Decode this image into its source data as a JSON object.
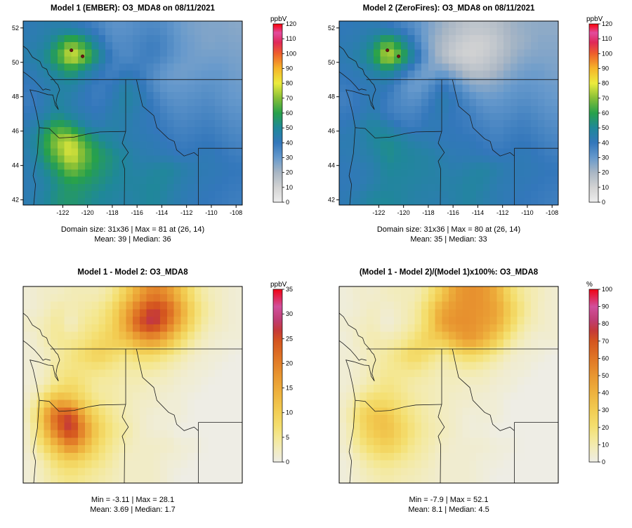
{
  "page": {
    "background": "#ffffff"
  },
  "axes": {
    "x_ticks": [
      -122,
      -120,
      -118,
      -116,
      -114,
      -112,
      -110,
      -108
    ],
    "y_ticks": [
      42,
      44,
      46,
      48,
      50,
      52
    ]
  },
  "colormaps": {
    "conc": [
      [
        0.0,
        "#ededed"
      ],
      [
        0.083,
        "#d3d3d3"
      ],
      [
        0.167,
        "#a9b6c4"
      ],
      [
        0.25,
        "#6699cc"
      ],
      [
        0.333,
        "#3377bb"
      ],
      [
        0.417,
        "#1f8899"
      ],
      [
        0.5,
        "#27a14b"
      ],
      [
        0.583,
        "#86bf36"
      ],
      [
        0.667,
        "#ecec3d"
      ],
      [
        0.75,
        "#f6b529"
      ],
      [
        0.833,
        "#ee5f2b"
      ],
      [
        0.896,
        "#e02858"
      ],
      [
        0.95,
        "#e24b9d"
      ],
      [
        1.0,
        "#fb0007"
      ]
    ],
    "diff": [
      [
        0.0,
        "#eeede5"
      ],
      [
        0.07,
        "#f2ecc0"
      ],
      [
        0.14,
        "#f4e896"
      ],
      [
        0.21,
        "#f4de6e"
      ],
      [
        0.3,
        "#f2cc52"
      ],
      [
        0.4,
        "#eeb23e"
      ],
      [
        0.5,
        "#e89630"
      ],
      [
        0.6,
        "#e07626"
      ],
      [
        0.7,
        "#d4551f"
      ],
      [
        0.76,
        "#c53a38"
      ],
      [
        0.82,
        "#bf3d72"
      ],
      [
        0.9,
        "#d1509c"
      ],
      [
        1.0,
        "#f00314"
      ]
    ]
  },
  "panels": [
    {
      "title": "Model 1 (EMBER): O3_MDA8 on 08/11/2021",
      "stats_line1": "Domain size: 31x36 | Max = 81 at (26, 14)",
      "stats_line2": "Mean: 39 |  Median: 36",
      "colorbar": {
        "label": "ppbV",
        "min": 0,
        "max": 120,
        "ticks": [
          0,
          10,
          20,
          30,
          40,
          50,
          60,
          70,
          80,
          90,
          100,
          110,
          120
        ],
        "palette": "conc"
      }
    },
    {
      "title": "Model 2 (ZeroFires): O3_MDA8 on 08/11/2021",
      "stats_line1": "Domain size: 31x36 | Max = 80 at (26, 14)",
      "stats_line2": "Mean: 35 |  Median: 33",
      "colorbar": {
        "label": "ppbV",
        "min": 0,
        "max": 120,
        "ticks": [
          0,
          10,
          20,
          30,
          40,
          50,
          60,
          70,
          80,
          90,
          100,
          110,
          120
        ],
        "palette": "conc"
      }
    },
    {
      "title": "Model 1 - Model 2: O3_MDA8",
      "stats_line1": "Min = -3.11 | Max = 28.1",
      "stats_line2": "Mean: 3.69 |  Median: 1.7",
      "colorbar": {
        "label": "ppbV",
        "min": 0,
        "max": 35,
        "ticks": [
          0,
          5,
          10,
          15,
          20,
          25,
          30,
          35
        ],
        "palette": "diff"
      }
    },
    {
      "title": "(Model 1 - Model 2)/(Model 1)x100%: O3_MDA8",
      "stats_line1": "Min = -7.9 | Max = 52.1",
      "stats_line2": "Mean: 8.1 |  Median: 4.5",
      "colorbar": {
        "label": "%",
        "min": 0,
        "max": 100,
        "ticks": [
          0,
          10,
          20,
          30,
          40,
          50,
          60,
          70,
          80,
          90,
          100
        ],
        "palette": "diff"
      }
    }
  ],
  "chart_data": [
    {
      "type": "heatmap",
      "title": "Model 1 (EMBER): O3_MDA8 on 08/11/2021",
      "units": "ppbV",
      "x_range": [
        -125.2,
        -107.5
      ],
      "y_range": [
        41.7,
        52.4
      ],
      "markers": [
        {
          "lon": -121.3,
          "lat": 50.7
        },
        {
          "lon": -120.4,
          "lat": 50.35
        }
      ],
      "grid": [
        [
          42,
          44,
          45,
          44,
          40,
          36,
          32,
          32,
          34,
          35,
          33,
          29,
          27,
          26,
          26,
          25
        ],
        [
          43,
          46,
          55,
          68,
          58,
          44,
          34,
          34,
          36,
          38,
          35,
          30,
          28,
          26,
          27,
          26
        ],
        [
          45,
          50,
          62,
          81,
          70,
          52,
          38,
          34,
          37,
          38,
          34,
          30,
          28,
          28,
          28,
          27
        ],
        [
          42,
          46,
          52,
          58,
          50,
          42,
          36,
          40,
          38,
          34,
          30,
          28,
          29,
          30,
          30,
          28
        ],
        [
          40,
          43,
          46,
          48,
          42,
          38,
          40,
          46,
          42,
          34,
          30,
          30,
          31,
          32,
          31,
          29
        ],
        [
          38,
          42,
          48,
          44,
          40,
          38,
          42,
          48,
          44,
          38,
          33,
          32,
          33,
          34,
          32,
          30
        ],
        [
          40,
          44,
          50,
          46,
          42,
          40,
          44,
          46,
          42,
          40,
          36,
          34,
          35,
          36,
          34,
          32
        ],
        [
          43,
          53,
          63,
          58,
          48,
          43,
          46,
          44,
          42,
          40,
          38,
          36,
          37,
          38,
          36,
          34
        ],
        [
          46,
          58,
          73,
          78,
          63,
          53,
          48,
          44,
          43,
          42,
          40,
          38,
          39,
          40,
          38,
          36
        ],
        [
          44,
          56,
          68,
          80,
          68,
          58,
          53,
          48,
          44,
          43,
          42,
          40,
          41,
          42,
          40,
          38
        ],
        [
          43,
          50,
          58,
          70,
          63,
          56,
          52,
          48,
          46,
          48,
          50,
          46,
          43,
          42,
          41,
          40
        ],
        [
          42,
          46,
          53,
          58,
          56,
          53,
          50,
          48,
          48,
          50,
          48,
          44,
          42,
          41,
          40,
          39
        ],
        [
          43,
          48,
          54,
          56,
          53,
          50,
          48,
          46,
          48,
          50,
          46,
          43,
          41,
          40,
          39,
          38
        ]
      ]
    },
    {
      "type": "heatmap",
      "title": "Model 2 (ZeroFires): O3_MDA8 on 08/11/2021",
      "units": "ppbV",
      "x_range": [
        -125.2,
        -107.5
      ],
      "y_range": [
        41.7,
        52.4
      ],
      "markers": [
        {
          "lon": -121.3,
          "lat": 50.7
        },
        {
          "lon": -120.4,
          "lat": 50.35
        }
      ],
      "grid": [
        [
          41,
          42,
          43,
          41,
          37,
          33,
          27,
          22,
          18,
          15,
          15,
          17,
          21,
          23,
          24,
          24
        ],
        [
          42,
          44,
          51,
          65,
          54,
          39,
          26,
          19,
          14,
          11,
          11,
          14,
          20,
          22,
          25,
          25
        ],
        [
          43,
          47,
          57,
          79,
          65,
          46,
          29,
          18,
          12,
          10,
          12,
          16,
          21,
          25,
          26,
          26
        ],
        [
          41,
          43,
          47,
          53,
          44,
          34,
          26,
          28,
          22,
          16,
          16,
          20,
          25,
          28,
          29,
          27
        ],
        [
          39,
          41,
          42,
          42,
          34,
          28,
          32,
          40,
          34,
          26,
          24,
          26,
          29,
          31,
          30,
          29
        ],
        [
          37,
          40,
          43,
          38,
          34,
          32,
          37,
          44,
          40,
          34,
          30,
          30,
          32,
          33,
          32,
          30
        ],
        [
          39,
          41,
          44,
          38,
          36,
          36,
          40,
          43,
          39,
          38,
          34,
          33,
          34,
          36,
          34,
          32
        ],
        [
          41,
          45,
          49,
          46,
          40,
          38,
          42,
          41,
          40,
          38,
          37,
          35,
          37,
          38,
          36,
          34
        ],
        [
          43,
          44,
          49,
          52,
          49,
          45,
          43,
          41,
          41,
          41,
          39,
          37,
          39,
          40,
          38,
          36
        ],
        [
          42,
          44,
          46,
          52,
          50,
          48,
          47,
          44,
          42,
          42,
          41,
          40,
          41,
          42,
          40,
          38
        ],
        [
          41,
          42,
          44,
          50,
          49,
          48,
          47,
          45,
          44,
          46,
          48,
          45,
          42,
          42,
          41,
          40
        ],
        [
          41,
          42,
          45,
          48,
          48,
          47,
          46,
          46,
          46,
          48,
          47,
          43,
          42,
          41,
          40,
          39
        ],
        [
          42,
          45,
          49,
          50,
          48,
          46,
          45,
          44,
          46,
          48,
          45,
          43,
          41,
          40,
          39,
          38
        ]
      ]
    },
    {
      "type": "heatmap",
      "title": "Model 1 - Model 2: O3_MDA8",
      "units": "ppbV",
      "x_range": [
        -125.2,
        -107.5
      ],
      "y_range": [
        41.7,
        52.4
      ],
      "markers": [],
      "grid": [
        [
          1,
          2,
          2,
          3,
          3,
          3,
          5,
          10,
          16,
          20,
          18,
          12,
          6,
          3,
          2,
          1
        ],
        [
          1,
          2,
          4,
          3,
          4,
          5,
          8,
          15,
          22,
          27,
          24,
          16,
          8,
          4,
          2,
          1
        ],
        [
          2,
          3,
          5,
          2,
          5,
          6,
          9,
          16,
          25,
          28,
          22,
          14,
          7,
          3,
          2,
          1
        ],
        [
          1,
          3,
          5,
          5,
          6,
          8,
          10,
          12,
          16,
          18,
          14,
          8,
          4,
          2,
          1,
          1
        ],
        [
          1,
          2,
          4,
          6,
          8,
          10,
          8,
          6,
          8,
          8,
          6,
          4,
          2,
          1,
          1,
          0
        ],
        [
          1,
          2,
          5,
          6,
          6,
          6,
          5,
          4,
          4,
          4,
          3,
          2,
          1,
          1,
          0,
          0
        ],
        [
          1,
          3,
          6,
          8,
          6,
          4,
          4,
          3,
          3,
          2,
          2,
          1,
          1,
          0,
          0,
          0
        ],
        [
          2,
          8,
          14,
          12,
          8,
          5,
          4,
          3,
          2,
          2,
          1,
          1,
          0,
          0,
          0,
          0
        ],
        [
          3,
          14,
          24,
          26,
          14,
          8,
          5,
          3,
          2,
          1,
          1,
          1,
          0,
          0,
          0,
          0
        ],
        [
          2,
          12,
          22,
          28,
          18,
          10,
          6,
          4,
          2,
          1,
          1,
          0,
          0,
          0,
          0,
          0
        ],
        [
          2,
          8,
          14,
          20,
          14,
          8,
          5,
          3,
          2,
          2,
          2,
          1,
          1,
          0,
          0,
          0
        ],
        [
          1,
          4,
          8,
          10,
          8,
          6,
          4,
          2,
          2,
          2,
          1,
          1,
          0,
          0,
          0,
          0
        ],
        [
          1,
          3,
          5,
          6,
          5,
          4,
          3,
          2,
          2,
          2,
          1,
          0,
          0,
          0,
          0,
          0
        ]
      ]
    },
    {
      "type": "heatmap",
      "title": "(Model 1 - Model 2)/(Model 1)x100%: O3_MDA8",
      "units": "%",
      "x_range": [
        -125.2,
        -107.5
      ],
      "y_range": [
        41.7,
        52.4
      ],
      "markers": [],
      "grid": [
        [
          2,
          5,
          4,
          7,
          8,
          8,
          16,
          31,
          47,
          52,
          50,
          41,
          22,
          12,
          8,
          4
        ],
        [
          2,
          4,
          7,
          4,
          7,
          11,
          24,
          44,
          50,
          52,
          50,
          45,
          29,
          15,
          7,
          4
        ],
        [
          4,
          6,
          8,
          2,
          7,
          12,
          24,
          47,
          52,
          52,
          48,
          42,
          25,
          11,
          7,
          4
        ],
        [
          2,
          7,
          10,
          9,
          12,
          19,
          28,
          30,
          42,
          50,
          42,
          29,
          14,
          7,
          3,
          4
        ],
        [
          3,
          5,
          9,
          13,
          19,
          26,
          20,
          13,
          19,
          24,
          20,
          13,
          6,
          3,
          3,
          0
        ],
        [
          3,
          5,
          10,
          14,
          15,
          16,
          12,
          8,
          9,
          11,
          9,
          6,
          3,
          3,
          0,
          0
        ],
        [
          3,
          7,
          12,
          17,
          14,
          10,
          9,
          7,
          7,
          5,
          6,
          3,
          3,
          0,
          0,
          0
        ],
        [
          5,
          15,
          22,
          21,
          17,
          12,
          9,
          7,
          5,
          5,
          3,
          3,
          0,
          0,
          0,
          0
        ],
        [
          7,
          24,
          33,
          33,
          22,
          15,
          10,
          7,
          5,
          2,
          3,
          3,
          0,
          0,
          0,
          0
        ],
        [
          5,
          21,
          32,
          35,
          26,
          17,
          11,
          8,
          5,
          2,
          2,
          0,
          0,
          0,
          0,
          0
        ],
        [
          5,
          16,
          24,
          29,
          22,
          14,
          10,
          6,
          4,
          4,
          4,
          2,
          2,
          0,
          0,
          0
        ],
        [
          2,
          9,
          15,
          17,
          14,
          11,
          8,
          4,
          4,
          4,
          2,
          2,
          0,
          0,
          0,
          0
        ],
        [
          2,
          6,
          9,
          11,
          9,
          8,
          6,
          4,
          4,
          4,
          2,
          0,
          0,
          0,
          0,
          0
        ]
      ]
    }
  ]
}
